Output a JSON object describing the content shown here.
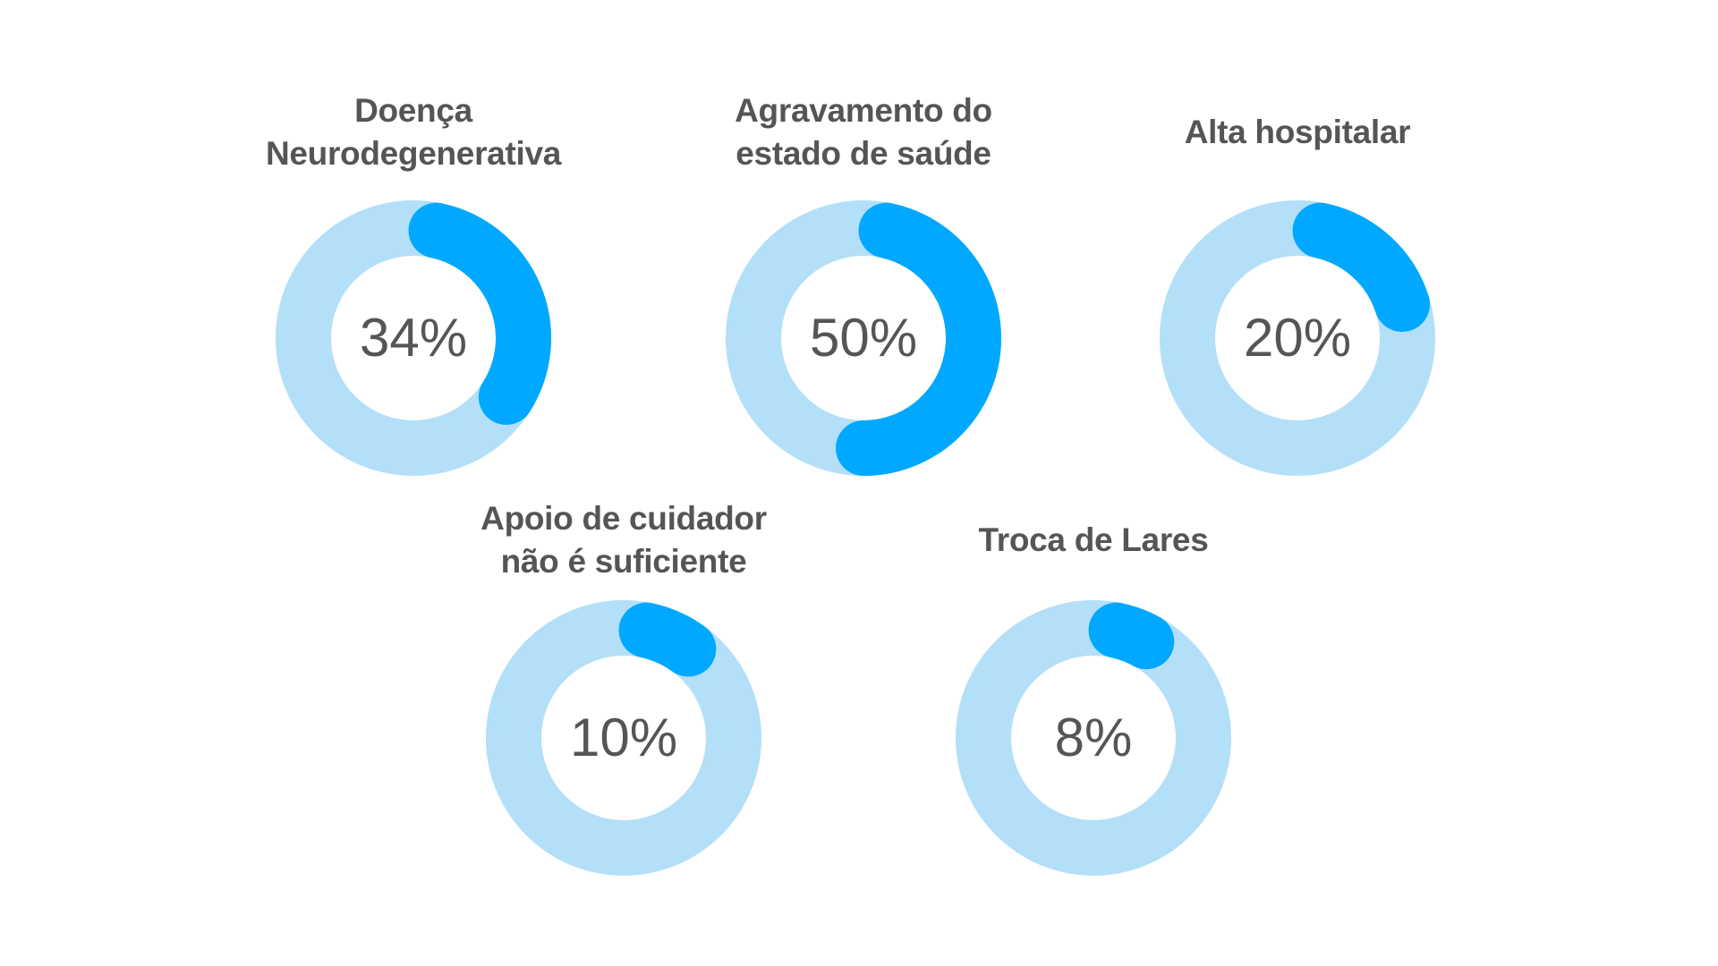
{
  "colors": {
    "track": "#b3dff9",
    "progress": "#00a8ff",
    "text": "#555555",
    "background": "#ffffff"
  },
  "donuts": [
    {
      "title_line1": "Doença",
      "title_line2": "Neurodegenerativa",
      "value": 34,
      "label": "34%"
    },
    {
      "title_line1": "Agravamento do",
      "title_line2": "estado de saúde",
      "value": 50,
      "label": "50%"
    },
    {
      "title_line1": "Alta hospitalar",
      "title_line2": "",
      "value": 20,
      "label": "20%"
    },
    {
      "title_line1": "Apoio de cuidador",
      "title_line2": "não é suficiente",
      "value": 10,
      "label": "10%"
    },
    {
      "title_line1": "Troca de Lares",
      "title_line2": "",
      "value": 8,
      "label": "8%"
    }
  ],
  "chart_data": {
    "type": "pie",
    "subtype": "donut-progress",
    "title": "",
    "categories": [
      "Doença Neurodegenerativa",
      "Agravamento do estado de saúde",
      "Alta hospitalar",
      "Apoio de cuidador não é suficiente",
      "Troca de Lares"
    ],
    "values": [
      34,
      50,
      20,
      10,
      8
    ],
    "unit": "%",
    "layout": "5 separate donut gauges: 3 in top row, 2 in bottom row",
    "colors": {
      "filled": "#00a8ff",
      "remaining": "#b3dff9"
    }
  }
}
